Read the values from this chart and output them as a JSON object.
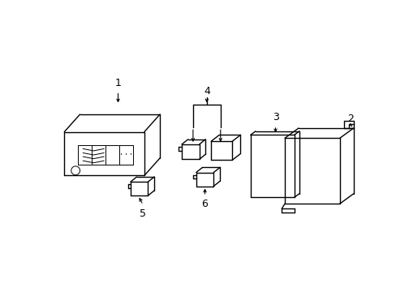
{
  "background_color": "#ffffff",
  "line_color": "#000000",
  "lw": 1.0,
  "tlw": 0.7
}
